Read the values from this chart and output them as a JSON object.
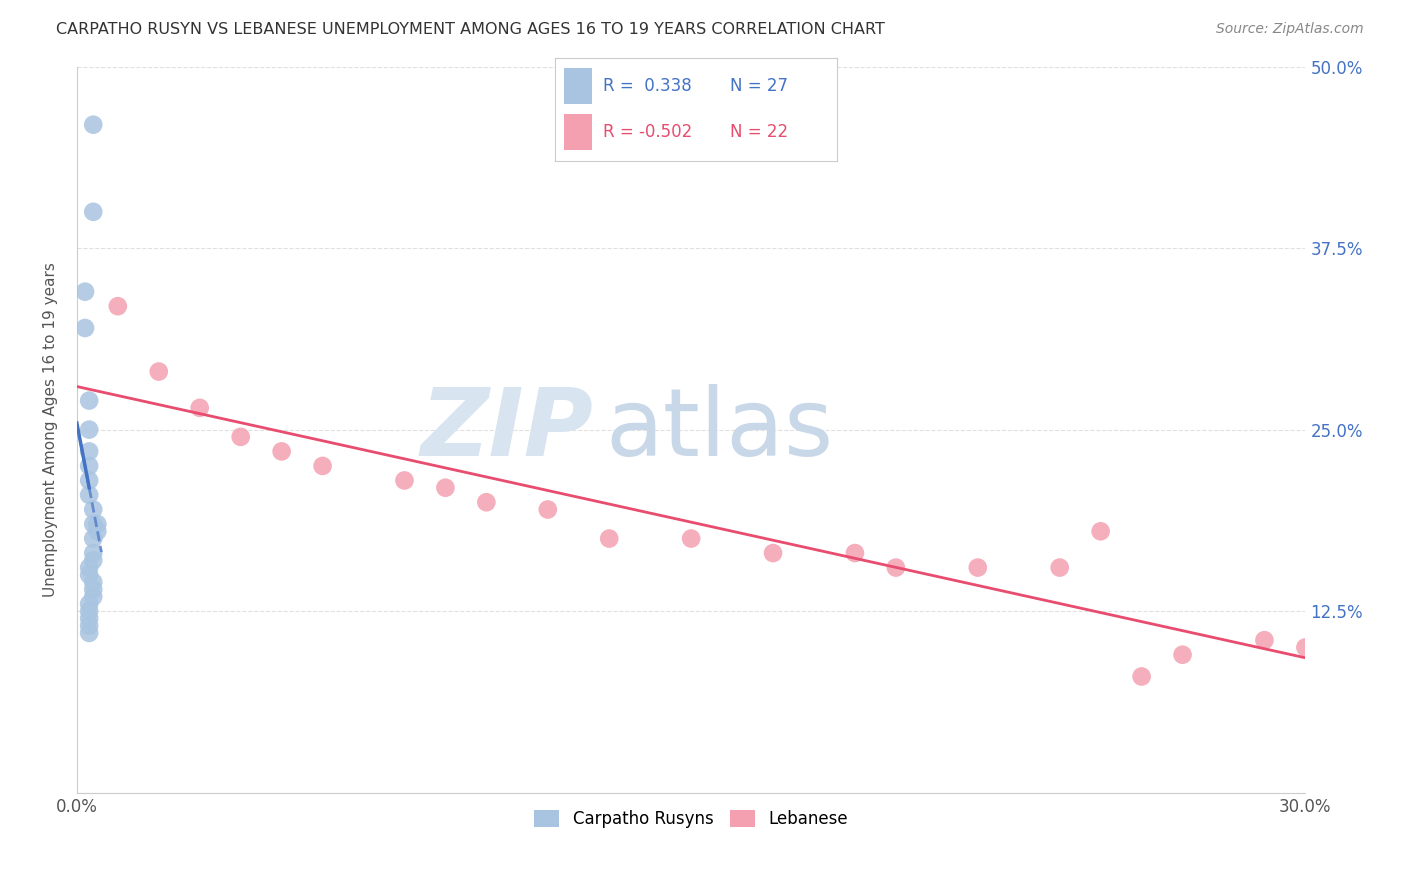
{
  "title": "CARPATHO RUSYN VS LEBANESE UNEMPLOYMENT AMONG AGES 16 TO 19 YEARS CORRELATION CHART",
  "source": "Source: ZipAtlas.com",
  "xlabel": "",
  "ylabel": "Unemployment Among Ages 16 to 19 years",
  "xlim": [
    0.0,
    0.3
  ],
  "ylim": [
    0.0,
    0.5
  ],
  "xticks": [
    0.0,
    0.05,
    0.1,
    0.15,
    0.2,
    0.25,
    0.3
  ],
  "xticklabels": [
    "0.0%",
    "",
    "",
    "",
    "",
    "",
    "30.0%"
  ],
  "yticks": [
    0.0,
    0.125,
    0.25,
    0.375,
    0.5
  ],
  "ytick_labels_right": [
    "",
    "12.5%",
    "25.0%",
    "37.5%",
    "50.0%"
  ],
  "carpatho_x": [
    0.004,
    0.004,
    0.002,
    0.002,
    0.003,
    0.003,
    0.003,
    0.003,
    0.003,
    0.003,
    0.004,
    0.004,
    0.005,
    0.005,
    0.004,
    0.004,
    0.004,
    0.003,
    0.003,
    0.004,
    0.004,
    0.004,
    0.003,
    0.003,
    0.003,
    0.003,
    0.003
  ],
  "carpatho_y": [
    0.46,
    0.4,
    0.345,
    0.32,
    0.27,
    0.25,
    0.235,
    0.225,
    0.215,
    0.205,
    0.195,
    0.185,
    0.185,
    0.18,
    0.175,
    0.165,
    0.16,
    0.155,
    0.15,
    0.145,
    0.14,
    0.135,
    0.13,
    0.125,
    0.12,
    0.115,
    0.11
  ],
  "lebanese_x": [
    0.01,
    0.02,
    0.03,
    0.04,
    0.05,
    0.06,
    0.08,
    0.09,
    0.1,
    0.115,
    0.13,
    0.15,
    0.17,
    0.19,
    0.22,
    0.25,
    0.27,
    0.29,
    0.2,
    0.24,
    0.26,
    0.3
  ],
  "lebanese_y": [
    0.335,
    0.29,
    0.265,
    0.245,
    0.235,
    0.225,
    0.215,
    0.21,
    0.2,
    0.195,
    0.175,
    0.175,
    0.165,
    0.165,
    0.155,
    0.18,
    0.095,
    0.105,
    0.155,
    0.155,
    0.08,
    0.1
  ],
  "carpatho_color": "#a8c4e0",
  "lebanese_color": "#f4a0b0",
  "carpatho_line_color": "#4472c4",
  "lebanese_line_color": "#e84c6e",
  "carpatho_R": "0.338",
  "carpatho_N": "27",
  "lebanese_R": "-0.502",
  "lebanese_N": "22",
  "legend_R_color": "#4472c4",
  "legend_R2_color": "#e84c6e",
  "watermark_zip": "ZIP",
  "watermark_atlas": "atlas",
  "background_color": "#ffffff",
  "grid_color": "#e0e0e0"
}
